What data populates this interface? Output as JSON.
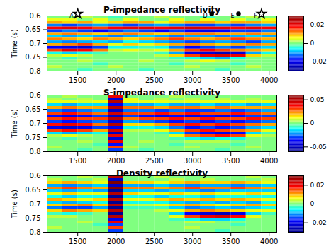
{
  "chart_data": [
    {
      "type": "heatmap",
      "title": "P-impedance reflectivity",
      "ylabel": "Time (s)",
      "x": [
        1200,
        1400,
        1600,
        1800,
        2000,
        2200,
        2400,
        2600,
        2800,
        3000,
        3200,
        3400,
        3600,
        3800,
        4000
      ],
      "y": [
        0.605,
        0.615,
        0.625,
        0.635,
        0.645,
        0.655,
        0.665,
        0.675,
        0.685,
        0.695,
        0.705,
        0.715,
        0.725,
        0.735,
        0.745,
        0.755,
        0.765,
        0.775,
        0.785,
        0.795
      ],
      "xlim": [
        1100,
        4100
      ],
      "xticks": [
        1500,
        2000,
        2500,
        3000,
        3500,
        4000
      ],
      "ylim": [
        0.6,
        0.8
      ],
      "yticks": [
        0.6,
        0.65,
        0.7,
        0.75,
        0.8
      ],
      "color_range": [
        -0.03,
        0.03
      ],
      "color_ticks": [
        -0.02,
        0,
        0.02
      ],
      "annotations": [
        {
          "x": 1500,
          "label": "A",
          "marker": "star"
        },
        {
          "x": 3250,
          "label": "D",
          "marker": "circle"
        },
        {
          "x": 3600,
          "label": "E",
          "marker": "circle"
        },
        {
          "x": 3900,
          "label": "F",
          "marker": "star"
        }
      ],
      "cells": [
        [
          0,
          0,
          0.003,
          0,
          -0.003,
          0,
          0,
          0.003,
          0,
          0,
          -0.003,
          0,
          0,
          0.003,
          0
        ],
        [
          0.005,
          0.005,
          0,
          0.005,
          0,
          0.005,
          0,
          0,
          0.005,
          0,
          0.005,
          0,
          0.005,
          0,
          0.005
        ],
        [
          0.01,
          0.008,
          0.01,
          0.005,
          0.008,
          0.01,
          0.01,
          0.005,
          0.008,
          0.01,
          0.01,
          0.008,
          0.01,
          0.01,
          0.008
        ],
        [
          -0.012,
          -0.015,
          -0.012,
          -0.01,
          -0.012,
          -0.015,
          -0.012,
          -0.01,
          -0.012,
          -0.015,
          -0.015,
          -0.012,
          -0.015,
          -0.012,
          -0.01
        ],
        [
          0.018,
          0.02,
          0.018,
          0.015,
          0.018,
          0.02,
          0.02,
          0.018,
          0.02,
          0.022,
          0.02,
          0.02,
          0.018,
          0.02,
          0.018
        ],
        [
          -0.015,
          -0.012,
          -0.015,
          -0.018,
          -0.015,
          -0.012,
          -0.015,
          -0.018,
          -0.015,
          -0.018,
          -0.02,
          -0.018,
          -0.015,
          -0.015,
          -0.012
        ],
        [
          0.01,
          0.012,
          0.01,
          0.008,
          0.01,
          0.012,
          0.01,
          0.008,
          0.01,
          0.012,
          0.012,
          0.01,
          0.01,
          0.012,
          0.01
        ],
        [
          -0.008,
          -0.01,
          -0.008,
          -0.01,
          -0.012,
          -0.01,
          -0.008,
          -0.01,
          -0.012,
          -0.01,
          -0.01,
          -0.012,
          -0.01,
          -0.008,
          -0.01
        ],
        [
          0.012,
          0.01,
          0.008,
          0.012,
          0.01,
          0.008,
          0.01,
          0.012,
          0.015,
          0.012,
          0.01,
          0.012,
          0.015,
          0.012,
          0.01
        ],
        [
          -0.01,
          -0.012,
          -0.01,
          -0.008,
          -0.01,
          -0.005,
          -0.008,
          -0.01,
          -0.012,
          -0.015,
          -0.012,
          -0.01,
          -0.012,
          -0.015,
          -0.01
        ],
        [
          0.01,
          0.012,
          0.015,
          0.01,
          0.005,
          0.008,
          0.005,
          0.008,
          0.01,
          0.012,
          0.01,
          0.008,
          0.01,
          0.012,
          0.01
        ],
        [
          -0.018,
          -0.02,
          -0.022,
          -0.015,
          -0.005,
          -0.005,
          -0.003,
          -0.005,
          -0.012,
          -0.018,
          -0.015,
          -0.012,
          -0.015,
          -0.01,
          -0.008
        ],
        [
          0.015,
          0.02,
          0.018,
          0.012,
          0.003,
          0.005,
          0.003,
          0.005,
          0.01,
          0.015,
          0.018,
          0.015,
          0.012,
          0.01,
          0.008
        ],
        [
          -0.005,
          -0.008,
          -0.005,
          -0.003,
          0,
          0,
          0,
          -0.003,
          -0.01,
          -0.02,
          -0.022,
          -0.025,
          -0.022,
          -0.01,
          -0.005
        ],
        [
          0.003,
          0.005,
          0.003,
          0,
          0,
          0,
          0,
          0.003,
          0.008,
          0.015,
          0.02,
          0.022,
          0.02,
          0.008,
          0.003
        ],
        [
          0,
          -0.003,
          0,
          0,
          0,
          0,
          0,
          0,
          -0.003,
          -0.005,
          -0.008,
          -0.01,
          -0.005,
          0,
          0
        ],
        [
          0,
          0,
          0.003,
          0,
          0,
          0,
          0.003,
          0,
          0,
          0.003,
          0.005,
          0.003,
          0,
          0,
          0
        ],
        [
          0,
          0,
          0,
          -0.003,
          0,
          0,
          0,
          0,
          -0.003,
          0,
          0,
          0,
          -0.003,
          0,
          0
        ],
        [
          0.003,
          0,
          0,
          0,
          0.003,
          0,
          0,
          0,
          0,
          0.003,
          0,
          0,
          0,
          0.003,
          0
        ],
        [
          0,
          0,
          -0.003,
          0,
          0,
          0,
          -0.003,
          0,
          0,
          0,
          0,
          -0.003,
          0,
          0,
          0
        ]
      ]
    },
    {
      "type": "heatmap",
      "title": "S-impedance reflectivity",
      "ylabel": "Time (s)",
      "x": [
        1200,
        1400,
        1600,
        1800,
        2000,
        2200,
        2400,
        2600,
        2800,
        3000,
        3200,
        3400,
        3600,
        3800,
        4000
      ],
      "y": [
        0.605,
        0.615,
        0.625,
        0.635,
        0.645,
        0.655,
        0.665,
        0.675,
        0.685,
        0.695,
        0.705,
        0.715,
        0.725,
        0.735,
        0.745,
        0.755,
        0.765,
        0.775,
        0.785,
        0.795
      ],
      "xlim": [
        1100,
        4100
      ],
      "xticks": [
        1500,
        2000,
        2500,
        3000,
        3500,
        4000
      ],
      "ylim": [
        0.6,
        0.8
      ],
      "yticks": [
        0.6,
        0.65,
        0.7,
        0.75,
        0.8
      ],
      "color_range": [
        -0.06,
        0.06
      ],
      "color_ticks": [
        -0.05,
        0,
        0.05
      ],
      "cells": [
        [
          0,
          0.005,
          0,
          0,
          0.04,
          0,
          0,
          0,
          0.005,
          0,
          0,
          0,
          0,
          0,
          0
        ],
        [
          0.005,
          0,
          0.005,
          0,
          -0.045,
          0.01,
          0,
          0.005,
          0,
          0.005,
          0,
          0.005,
          0,
          0.005,
          0
        ],
        [
          0.01,
          0.01,
          0.008,
          0.01,
          0.05,
          0.01,
          0.01,
          0.01,
          0.008,
          0.01,
          0.01,
          0.01,
          0.01,
          0.008,
          0.01
        ],
        [
          -0.015,
          -0.02,
          -0.015,
          -0.015,
          -0.04,
          -0.02,
          -0.02,
          -0.015,
          -0.02,
          -0.02,
          -0.015,
          -0.02,
          -0.015,
          -0.02,
          -0.015
        ],
        [
          0.02,
          0.025,
          0.02,
          0.02,
          0.05,
          0.025,
          0.025,
          0.02,
          0.025,
          0.025,
          0.02,
          0.025,
          0.02,
          0.02,
          0.02
        ],
        [
          -0.025,
          -0.03,
          -0.025,
          -0.02,
          -0.05,
          -0.025,
          -0.025,
          -0.03,
          -0.025,
          -0.03,
          -0.03,
          -0.025,
          -0.03,
          -0.025,
          -0.02
        ],
        [
          0.03,
          0.035,
          0.03,
          0.025,
          0.045,
          0.03,
          0.03,
          0.035,
          0.03,
          0.035,
          0.03,
          0.03,
          0.035,
          0.03,
          0.025
        ],
        [
          -0.035,
          -0.04,
          -0.035,
          -0.03,
          -0.05,
          -0.03,
          -0.035,
          -0.04,
          -0.035,
          -0.04,
          -0.035,
          -0.04,
          -0.035,
          -0.03,
          -0.03
        ],
        [
          0.03,
          0.035,
          0.03,
          0.03,
          0.05,
          0.025,
          0.03,
          0.03,
          0.035,
          0.03,
          0.035,
          0.03,
          0.03,
          0.035,
          0.03
        ],
        [
          -0.03,
          -0.035,
          -0.03,
          -0.025,
          -0.045,
          -0.02,
          -0.025,
          -0.03,
          -0.035,
          -0.03,
          -0.035,
          -0.03,
          -0.035,
          -0.03,
          -0.025
        ],
        [
          0.035,
          0.04,
          0.035,
          0.025,
          0.05,
          0.015,
          0.015,
          0.02,
          0.03,
          0.035,
          0.03,
          0.035,
          0.03,
          0.025,
          0.02
        ],
        [
          -0.04,
          -0.045,
          -0.04,
          -0.03,
          -0.04,
          -0.01,
          -0.01,
          -0.015,
          -0.025,
          -0.035,
          -0.03,
          -0.035,
          -0.03,
          -0.02,
          -0.015
        ],
        [
          0.03,
          0.035,
          0.03,
          0.02,
          0.045,
          0.005,
          0.005,
          0.01,
          0.02,
          0.03,
          0.035,
          0.03,
          0.025,
          0.02,
          0.01
        ],
        [
          -0.015,
          -0.02,
          -0.015,
          -0.01,
          -0.05,
          0,
          0,
          -0.005,
          -0.015,
          -0.03,
          -0.035,
          -0.04,
          -0.035,
          -0.015,
          -0.005
        ],
        [
          0.005,
          0.01,
          0.005,
          0,
          0.04,
          0,
          0,
          0,
          0.01,
          0.025,
          0.03,
          0.035,
          0.03,
          0.01,
          0.005
        ],
        [
          0,
          -0.005,
          0,
          0,
          -0.045,
          0,
          0,
          0,
          -0.005,
          -0.01,
          -0.015,
          -0.01,
          -0.01,
          0,
          0
        ],
        [
          0,
          0,
          0.005,
          0,
          0.04,
          0,
          0.005,
          0,
          0,
          0.005,
          0.005,
          0.005,
          0,
          0,
          0
        ],
        [
          0,
          0,
          0,
          -0.005,
          -0.035,
          0,
          0,
          0,
          -0.005,
          0,
          0,
          0,
          -0.005,
          0,
          0
        ],
        [
          0.005,
          0,
          0,
          0,
          0.03,
          0.005,
          0,
          0,
          0,
          0.005,
          0,
          0,
          0,
          0.005,
          0
        ],
        [
          0,
          0,
          -0.005,
          0,
          -0.03,
          0,
          -0.005,
          0,
          0,
          0,
          0,
          -0.005,
          0,
          0,
          0
        ]
      ]
    },
    {
      "type": "heatmap",
      "title": "Density reflectivity",
      "ylabel": "Time (s)",
      "x": [
        1200,
        1400,
        1600,
        1800,
        2000,
        2200,
        2400,
        2600,
        2800,
        3000,
        3200,
        3400,
        3600,
        3800,
        4000
      ],
      "y": [
        0.605,
        0.615,
        0.625,
        0.635,
        0.645,
        0.655,
        0.665,
        0.675,
        0.685,
        0.695,
        0.705,
        0.715,
        0.725,
        0.735,
        0.745,
        0.755,
        0.765,
        0.775,
        0.785,
        0.795
      ],
      "xlim": [
        1100,
        4100
      ],
      "xticks": [
        1500,
        2000,
        2500,
        3000,
        3500,
        4000
      ],
      "ylim": [
        0.6,
        0.8
      ],
      "yticks": [
        0.6,
        0.65,
        0.7,
        0.75,
        0.8
      ],
      "color_range": [
        -0.03,
        0.03
      ],
      "color_ticks": [
        -0.02,
        0,
        0.02
      ],
      "cells": [
        [
          0,
          0,
          0.003,
          0,
          0.025,
          0,
          0,
          0.003,
          0,
          0,
          0,
          0,
          0,
          0.003,
          0
        ],
        [
          0.003,
          0,
          0,
          0.003,
          -0.025,
          0,
          0,
          0,
          0.003,
          0,
          0.003,
          0,
          0,
          0,
          0.003
        ],
        [
          0.008,
          0.01,
          0.008,
          0.005,
          0.03,
          0.008,
          0.008,
          0.005,
          0.008,
          0.01,
          0.008,
          0.008,
          0.01,
          0.008,
          0.005
        ],
        [
          -0.01,
          -0.012,
          -0.01,
          -0.008,
          -0.025,
          -0.01,
          -0.01,
          -0.008,
          -0.01,
          -0.012,
          -0.01,
          -0.01,
          -0.012,
          -0.01,
          -0.008
        ],
        [
          0.012,
          0.015,
          0.012,
          0.01,
          0.03,
          0.012,
          0.012,
          0.01,
          0.012,
          0.015,
          0.012,
          0.012,
          0.015,
          0.012,
          0.01
        ],
        [
          -0.008,
          -0.01,
          -0.008,
          -0.01,
          -0.03,
          -0.008,
          -0.008,
          -0.01,
          -0.008,
          -0.01,
          -0.012,
          -0.01,
          -0.008,
          -0.008,
          -0.008
        ],
        [
          0.005,
          0.008,
          0.005,
          0.005,
          0.025,
          0.008,
          0.005,
          0.005,
          0.008,
          0.005,
          0.008,
          0.005,
          0.005,
          0.008,
          0.005
        ],
        [
          -0.005,
          -0.008,
          -0.005,
          -0.005,
          -0.03,
          -0.005,
          -0.005,
          -0.008,
          -0.005,
          -0.005,
          -0.008,
          -0.005,
          -0.005,
          -0.005,
          -0.005
        ],
        [
          0.01,
          0.008,
          0.005,
          0.008,
          0.025,
          0.005,
          0.005,
          0.008,
          0.01,
          0.008,
          0.01,
          0.008,
          0.01,
          0.008,
          0.005
        ],
        [
          -0.008,
          -0.01,
          -0.008,
          -0.005,
          -0.03,
          -0.005,
          -0.005,
          -0.005,
          -0.008,
          -0.01,
          -0.008,
          -0.01,
          -0.008,
          -0.01,
          -0.005
        ],
        [
          0.008,
          0.01,
          0.012,
          0.008,
          0.025,
          0.003,
          0.003,
          0.005,
          0.008,
          0.01,
          0.008,
          0.005,
          0.008,
          0.01,
          0.008
        ],
        [
          -0.012,
          -0.015,
          -0.015,
          -0.01,
          -0.03,
          -0.003,
          -0.003,
          -0.003,
          -0.008,
          -0.012,
          -0.01,
          -0.008,
          -0.01,
          -0.008,
          -0.005
        ],
        [
          0.008,
          0.012,
          0.01,
          0.008,
          0.025,
          0,
          0,
          0.003,
          0.005,
          0.01,
          0.012,
          0.01,
          0.008,
          0.005,
          0.005
        ],
        [
          -0.003,
          -0.005,
          -0.003,
          0,
          -0.03,
          0,
          0,
          0,
          -0.008,
          -0.018,
          -0.022,
          -0.025,
          -0.02,
          -0.008,
          -0.003
        ],
        [
          0.003,
          0.003,
          0,
          0,
          0.025,
          0,
          0,
          0,
          0.005,
          0.015,
          0.02,
          0.022,
          0.018,
          0.005,
          0
        ],
        [
          0,
          0,
          0,
          0,
          -0.02,
          0,
          0,
          0,
          -0.003,
          -0.005,
          -0.008,
          -0.008,
          -0.005,
          0,
          0
        ],
        [
          0,
          0,
          0.003,
          0,
          0.02,
          0,
          0,
          0,
          0,
          0.003,
          0.003,
          0,
          0,
          0,
          0
        ],
        [
          0,
          0,
          0,
          -0.003,
          -0.015,
          0,
          0,
          0,
          0,
          0,
          0,
          0,
          -0.003,
          0,
          0
        ],
        [
          0.003,
          0,
          0,
          0,
          0.015,
          0,
          0,
          0,
          0,
          0.003,
          0,
          0,
          0,
          0,
          0
        ],
        [
          0,
          0,
          0,
          0,
          -0.015,
          0,
          0,
          0,
          0,
          0,
          0,
          -0.003,
          0,
          0,
          0
        ]
      ]
    }
  ]
}
